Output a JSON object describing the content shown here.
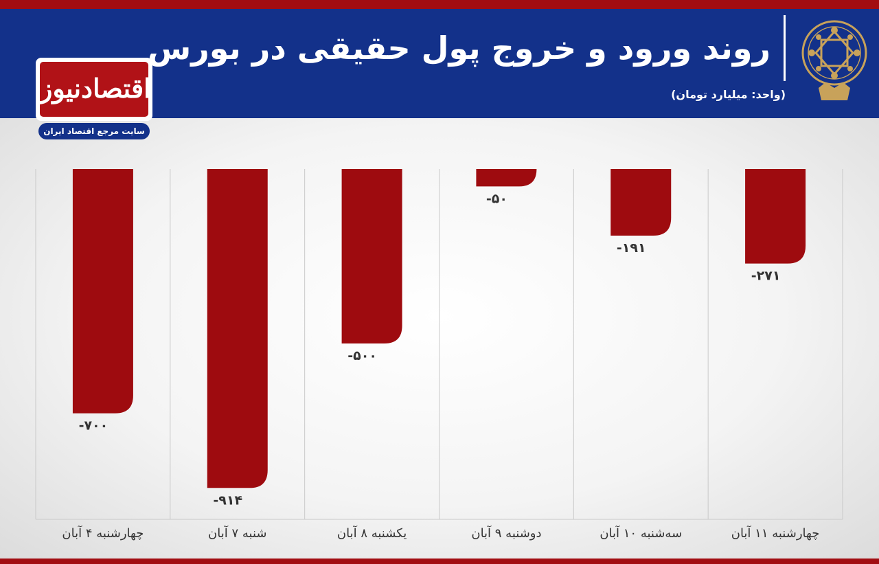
{
  "header": {
    "title": "روند ورود و خروج پول حقیقی در بورس",
    "unit": "(واحد: میلیارد تومان)"
  },
  "brand": {
    "name": "اقتصادنیوز",
    "tagline": "سایت مرجع اقتصاد ایران"
  },
  "colors": {
    "accent_red": "#a20d12",
    "header_blue": "#13318a",
    "bar_red": "#9e0b0f"
  },
  "chart_data": {
    "type": "bar",
    "title": "روند ورود و خروج پول حقیقی در بورس",
    "ylabel": "(واحد: میلیارد تومان)",
    "categories": [
      "چهارشنبه ۴ آبان",
      "شنبه ۷ آبان",
      "یکشنبه ۸ آبان",
      "دوشنبه ۹ آبان",
      "سه‌شنبه ۱۰ آبان",
      "چهارشنبه ۱۱ آبان"
    ],
    "values": [
      -700,
      -914,
      -500,
      -50,
      -191,
      -271
    ],
    "value_labels": [
      "-۷۰۰",
      "-۹۱۴",
      "-۵۰۰",
      "-۵۰",
      "-۱۹۱",
      "-۲۷۱"
    ],
    "ylim": [
      -1000,
      0
    ],
    "grid": true
  }
}
